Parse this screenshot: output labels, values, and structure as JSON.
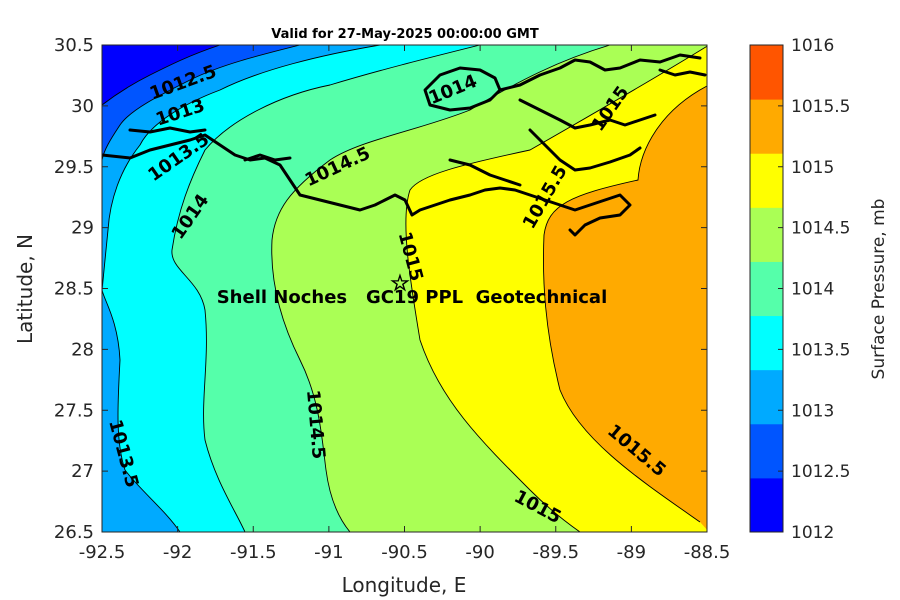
{
  "chart_data": {
    "type": "filled-contour-map",
    "title": "Valid for 27-May-2025 00:00:00 GMT",
    "xlabel": "Longitude, E",
    "ylabel": "Latitude, N",
    "xlim": [
      -92.5,
      -88.5
    ],
    "ylim": [
      26.5,
      30.5
    ],
    "xticks": [
      "-92.5",
      "-92",
      "-91.5",
      "-91",
      "-90.5",
      "-90",
      "-89.5",
      "-89",
      "-88.5"
    ],
    "yticks": [
      "30.5",
      "30",
      "29.5",
      "29",
      "28.5",
      "28",
      "27.5",
      "27",
      "26.5"
    ],
    "colorbar": {
      "label": "Surface Pressure, mb",
      "levels": [
        "1016",
        "1015.5",
        "1015",
        "1014.5",
        "1014",
        "1013.5",
        "1013",
        "1012.5",
        "1012"
      ],
      "colors": [
        "#0000ff",
        "#0055ff",
        "#00aaff",
        "#00ffff",
        "#55ffaa",
        "#aaff55",
        "#ffff00",
        "#ffaa00",
        "#ff5500"
      ]
    },
    "contour_labels": [
      "1012.5",
      "1013",
      "1013.5",
      "1014",
      "1014",
      "1014.5",
      "1015",
      "1015",
      "1015.5",
      "1014.5",
      "1015",
      "1013.5",
      "1015.5"
    ],
    "site_marker": {
      "lon": -90.53,
      "lat": 28.55,
      "symbol": "☆"
    },
    "annotation": "Shell Noches   GC19 PPL  Geotechnical",
    "grid": false
  }
}
